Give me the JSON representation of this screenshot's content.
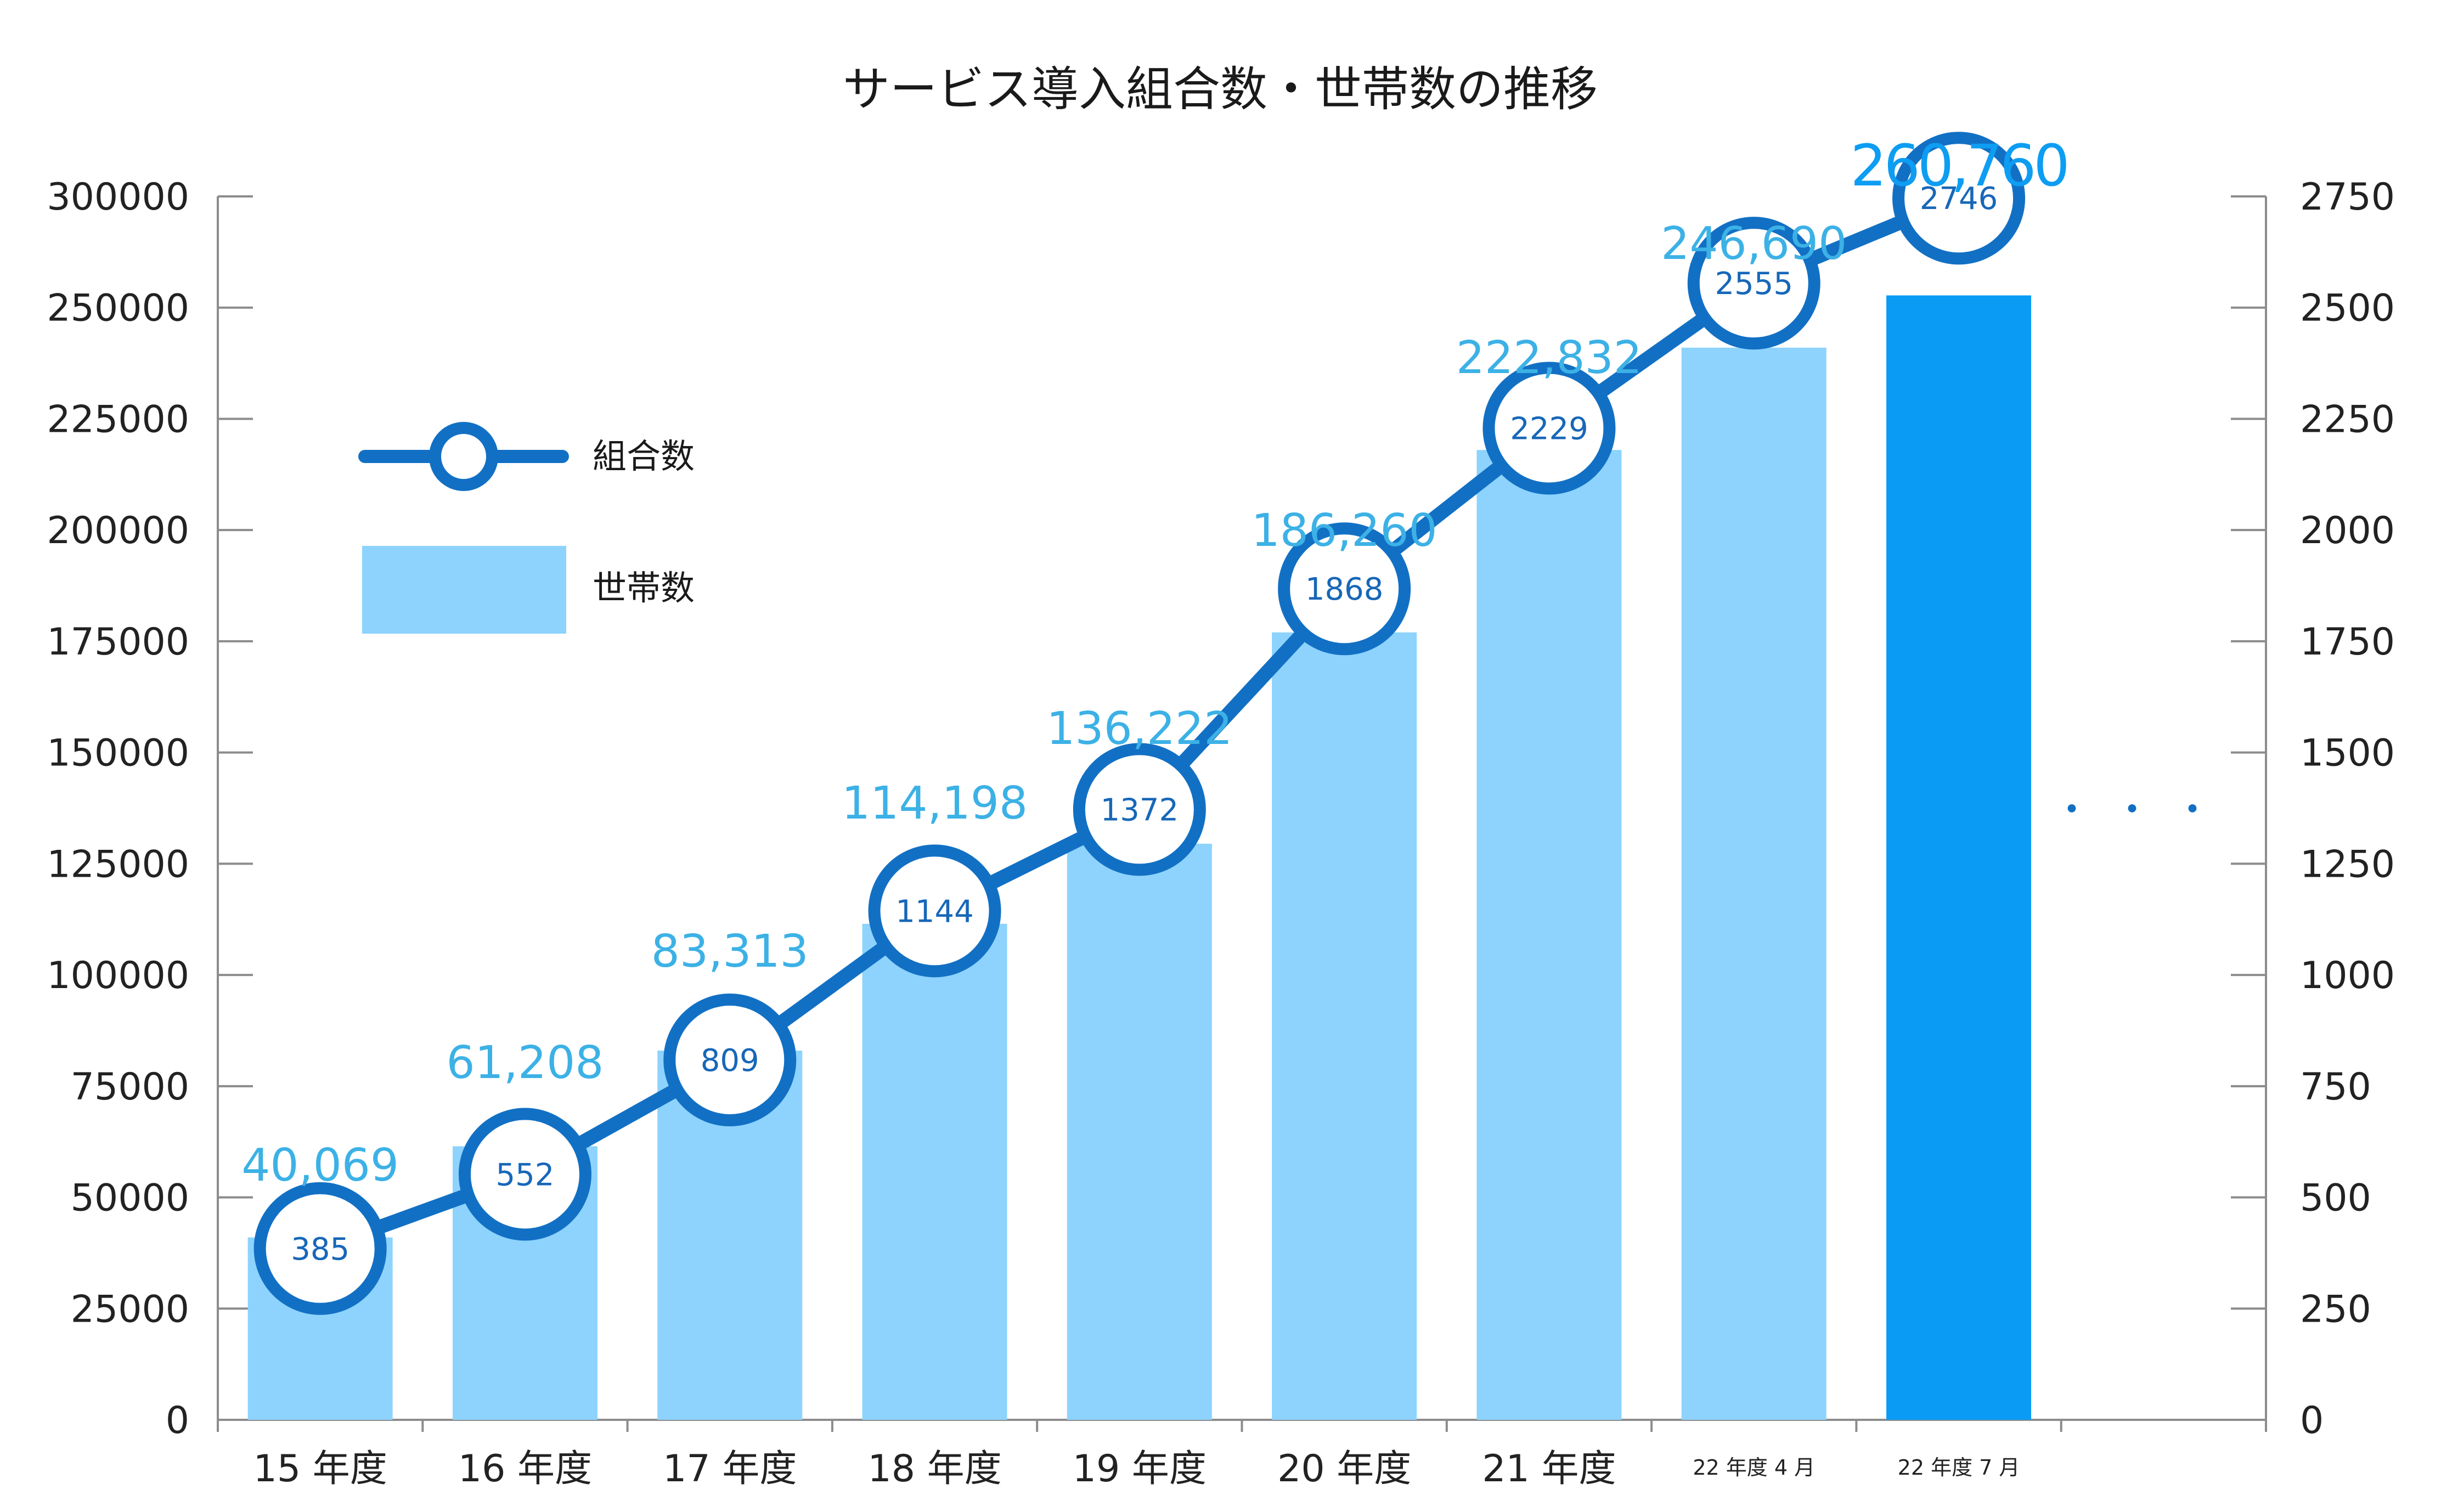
{
  "chart_data": {
    "type": "bar",
    "title": "サービス導入組合数・世帯数の推移",
    "categories": [
      "15 年度",
      "16 年度",
      "17 年度",
      "18 年度",
      "19 年度",
      "20 年度",
      "21 年度",
      "22 年度 4 月",
      "22 年度 7 月"
    ],
    "series": [
      {
        "name": "世帯数",
        "type": "bar",
        "axis": "left",
        "values": [
          40069,
          61208,
          83313,
          114198,
          136222,
          186260,
          222832,
          246690,
          260760
        ],
        "labels": [
          "40,069",
          "61,208",
          "83,313",
          "114,198",
          "136,222",
          "186,260",
          "222,832",
          "246,690",
          "260,760"
        ],
        "plot_values": [
          41000,
          61500,
          83000,
          111500,
          129500,
          177000,
          218000,
          241000,
          255500
        ],
        "color": "#8dd3fd",
        "highlight_index": 8,
        "highlight_color": "#0a9bf5"
      },
      {
        "name": "組合数",
        "type": "line",
        "axis": "right",
        "values": [
          385,
          552,
          809,
          1144,
          1372,
          1868,
          2229,
          2555,
          2746
        ],
        "labels": [
          "385",
          "552",
          "809",
          "1144",
          "1372",
          "1868",
          "2229",
          "2555",
          "2746"
        ],
        "color": "#1270c4"
      }
    ],
    "y_left": {
      "ticks": [
        0,
        25000,
        50000,
        75000,
        100000,
        125000,
        150000,
        175000,
        200000,
        225000,
        250000,
        300000
      ],
      "tick_labels": [
        "0",
        "25000",
        "50000",
        "75000",
        "100000",
        "125000",
        "150000",
        "175000",
        "200000",
        "225000",
        "250000",
        "300000"
      ]
    },
    "y_right": {
      "ticks": [
        0,
        250,
        500,
        750,
        1000,
        1250,
        1500,
        1750,
        2000,
        2250,
        2500,
        2750
      ],
      "tick_labels": [
        "0",
        "250",
        "500",
        "750",
        "1000",
        "1250",
        "1500",
        "1750",
        "2000",
        "2250",
        "2500",
        "2750"
      ]
    },
    "ellipsis": "・・・",
    "legend": {
      "placement": "top-left",
      "entries": [
        {
          "label": "組合数",
          "kind": "line-marker"
        },
        {
          "label": "世帯数",
          "kind": "bar"
        }
      ]
    },
    "grid": false
  }
}
